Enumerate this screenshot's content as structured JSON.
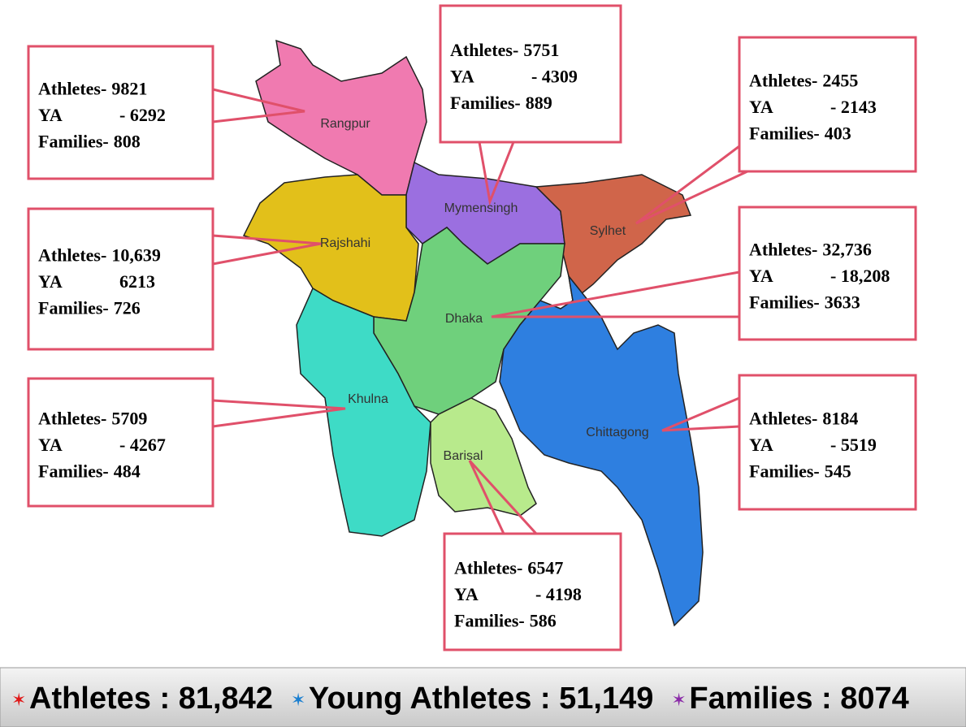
{
  "divisions": [
    {
      "name": "Rangpur",
      "lines": [
        [
          "Athletes-",
          "9821"
        ],
        [
          "YA",
          "- 6292"
        ],
        [
          "Families-",
          "808"
        ]
      ]
    },
    {
      "name": "Mymensingh",
      "lines": [
        [
          "Athletes-",
          "5751"
        ],
        [
          "YA",
          "- 4309"
        ],
        [
          "Families-",
          "889"
        ]
      ]
    },
    {
      "name": "Sylhet",
      "lines": [
        [
          "Athletes-",
          "2455"
        ],
        [
          "YA",
          "- 2143"
        ],
        [
          "Families-",
          "403"
        ]
      ]
    },
    {
      "name": "Rajshahi",
      "lines": [
        [
          "Athletes-",
          "10,639"
        ],
        [
          "YA",
          "6213"
        ],
        [
          "Families-",
          "726"
        ]
      ]
    },
    {
      "name": "Dhaka",
      "lines": [
        [
          "Athletes-",
          "32,736"
        ],
        [
          "YA",
          "- 18,208"
        ],
        [
          "Families-",
          "3633"
        ]
      ]
    },
    {
      "name": "Khulna",
      "lines": [
        [
          "Athletes-",
          "5709"
        ],
        [
          "YA",
          "- 4267"
        ],
        [
          "Families-",
          "484"
        ]
      ]
    },
    {
      "name": "Chittagong",
      "lines": [
        [
          "Athletes-",
          "8184"
        ],
        [
          "YA",
          "- 5519"
        ],
        [
          "Families-",
          "545"
        ]
      ]
    },
    {
      "name": "Barisal",
      "lines": [
        [
          "Athletes-",
          "6547"
        ],
        [
          "YA",
          "- 4198"
        ],
        [
          "Families-",
          "586"
        ]
      ]
    }
  ],
  "totals": [
    "Athletes : 81,842",
    "Young Athletes : 51,149",
    "Families : 8074"
  ]
}
